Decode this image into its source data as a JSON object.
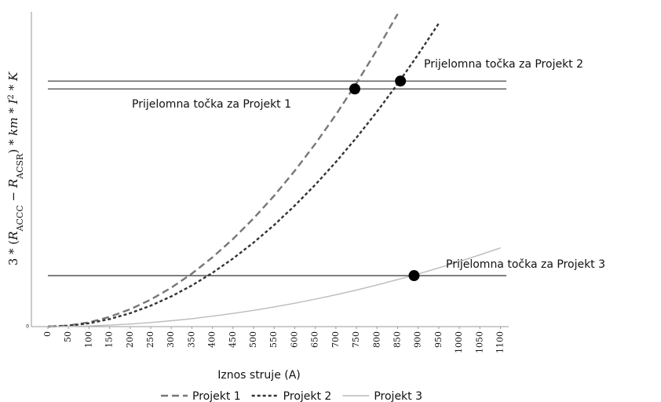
{
  "chart_data": {
    "type": "line",
    "x_label": "Iznos struje (A)",
    "y_label_parts": [
      "3 * (",
      "R",
      "ACCC",
      " − ",
      "R",
      "ACSR",
      ") * ",
      "km",
      " * ",
      "I",
      "2",
      " * ",
      "K"
    ],
    "x": [
      0,
      50,
      100,
      150,
      200,
      250,
      300,
      350,
      400,
      450,
      500,
      550,
      600,
      650,
      700,
      750,
      800,
      850,
      900,
      950,
      1000,
      1050,
      1100
    ],
    "xlim": [
      -40,
      1120
    ],
    "xticks": [
      0,
      50,
      100,
      150,
      200,
      250,
      300,
      350,
      400,
      450,
      500,
      550,
      600,
      650,
      700,
      750,
      800,
      850,
      900,
      950,
      1000,
      1050,
      1100
    ],
    "ylim": [
      0,
      100
    ],
    "yticks": [
      0
    ],
    "series": [
      {
        "name": "Projekt 1",
        "color": "#777777",
        "dash": "9,5",
        "width": 2.4,
        "values": [
          0,
          0.34,
          1.37,
          3.09,
          5.5,
          8.59,
          12.37,
          16.84,
          21.99,
          27.83,
          34.36,
          41.57,
          49.48,
          58.07,
          67.34,
          77.31,
          87.96,
          99.3,
          null,
          null,
          null,
          null,
          null
        ]
      },
      {
        "name": "Projekt 2",
        "color": "#333333",
        "dash": "4,3",
        "width": 2.4,
        "values": [
          0,
          0.27,
          1.07,
          2.4,
          4.27,
          6.67,
          9.6,
          13.07,
          17.08,
          21.61,
          26.68,
          32.28,
          38.42,
          45.09,
          52.29,
          60.03,
          68.3,
          77.1,
          86.45,
          96.31,
          null,
          null,
          null
        ]
      },
      {
        "name": "Projekt 3",
        "color": "#bbbbbb",
        "dash": "",
        "width": 1.4,
        "values": [
          0,
          0.05,
          0.21,
          0.47,
          0.83,
          1.29,
          1.86,
          2.53,
          3.31,
          4.19,
          5.17,
          6.25,
          7.44,
          8.73,
          10.13,
          11.63,
          13.23,
          14.93,
          16.74,
          18.66,
          20.67,
          22.79,
          25.01
        ]
      }
    ],
    "reference_lines": [
      78,
      75.5,
      16.2
    ],
    "breakpoints": [
      {
        "x": 746,
        "y": 75.5
      },
      {
        "x": 857,
        "y": 78
      },
      {
        "x": 890,
        "y": 16.2
      }
    ],
    "annotations": [
      "Prijelomna točka za Projekt 2",
      "Prijelomna točka za Projekt 1",
      "Prijelomna točka za Projekt 3"
    ]
  }
}
